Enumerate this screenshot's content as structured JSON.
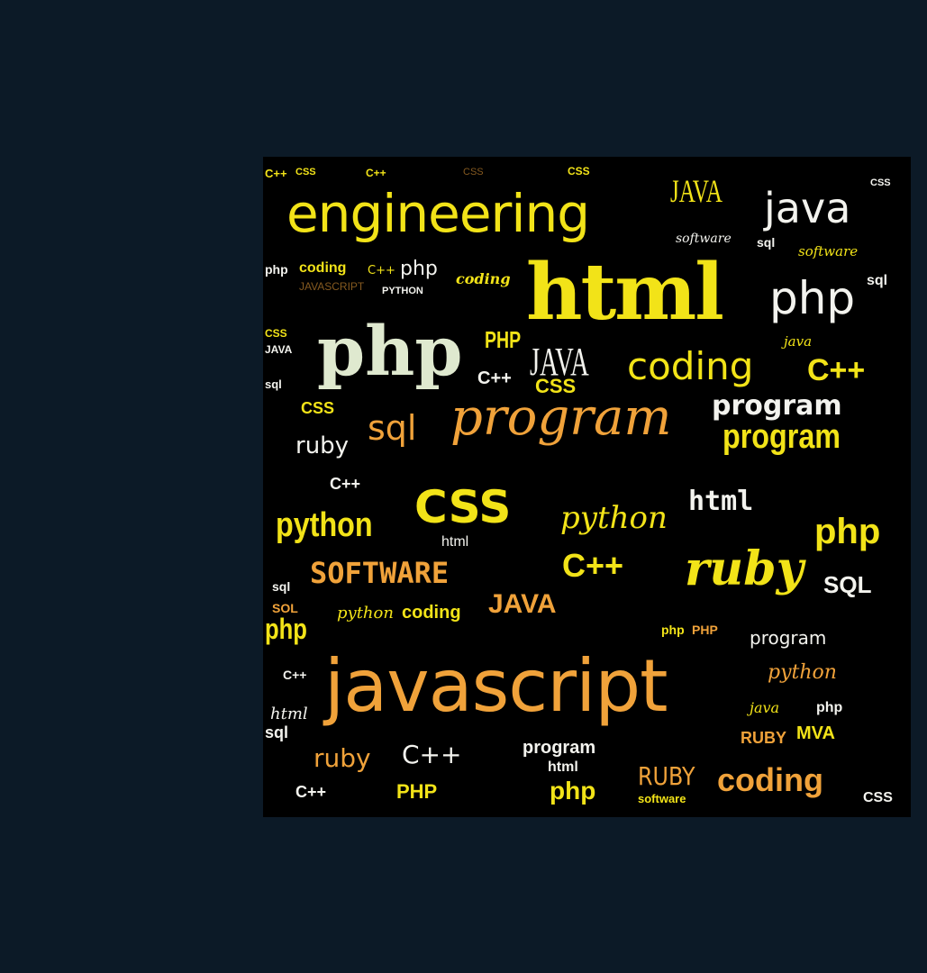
{
  "colors": {
    "background": "#0c1a27",
    "panel": "#000000",
    "yellow": "#f2e318",
    "orange": "#f0a23a",
    "white": "#f3f3ee",
    "pale_green": "#dfe9cf"
  },
  "words": {
    "engineering": "engineering",
    "java_caps_top": "JAVA",
    "java_top": "java",
    "html_big": "html",
    "php_right": "php",
    "php_big": "php",
    "php_small_1": "PHP",
    "java_mid": "JAVA",
    "css_mid": "CSS",
    "coding_mid": "coding",
    "cpp_right": "C++",
    "program_bold": "program",
    "program_script": "program",
    "program_right": "program",
    "sql_mid": "sql",
    "ruby_left": "ruby",
    "css_big": "CSS",
    "python_left": "python",
    "python_script": "python",
    "html_mid": "html",
    "php_right2": "php",
    "software": "SOFTWARE",
    "cpp_mid": "C++",
    "ruby_script": "ruby",
    "sql_right": "SQL",
    "java_low": "JAVA",
    "coding_low": "coding",
    "javascript": "javascript",
    "python_right": "python",
    "ruby_bottom": "ruby",
    "cpp_bottom": "C++",
    "program_bottom": "program",
    "ruby_caps": "RUBY",
    "coding_bottom": "coding",
    "php_bottom": "php",
    "php_caps_bottom": "PHP",
    "software_bottom": "software",
    "php_left_low": "php",
    "coding_small": "coding",
    "php_small_2": "php",
    "coding_small2": "coding",
    "html_small": "html",
    "css_small": "CSS",
    "cpp_small": "C++",
    "sql_small": "sql",
    "css_small2": "CSS",
    "program_small": "program",
    "java_small": "java",
    "sql_small2": "sql",
    "cpp_small2": "C++",
    "ruby_small": "RUBY",
    "mva_small": "MVA",
    "css_bottom_right": "CSS",
    "cpp_bottom_left": "C++",
    "html_small2": "html",
    "cpp_small3": "C++",
    "css_small3": "CSS",
    "php_small_3": "php",
    "cpp_top_left": "C++",
    "css_top": "CSS",
    "cpp_top2": "C++",
    "software_top": "software",
    "software_top2": "software",
    "sql_top": "sql",
    "coding_top": "coding",
    "php_top": "php",
    "python_top": "PYTHON",
    "javascript_small": "JAVASCRIPT",
    "java_right": "java",
    "sql_right2": "sql",
    "css_left": "CSS",
    "java_left": "JAVA",
    "sql_left": "sql",
    "program_mid_small": "program",
    "html_mid_small": "html",
    "cpp_left2": "C++",
    "sol_left": "SOL",
    "php_left2": "php"
  }
}
